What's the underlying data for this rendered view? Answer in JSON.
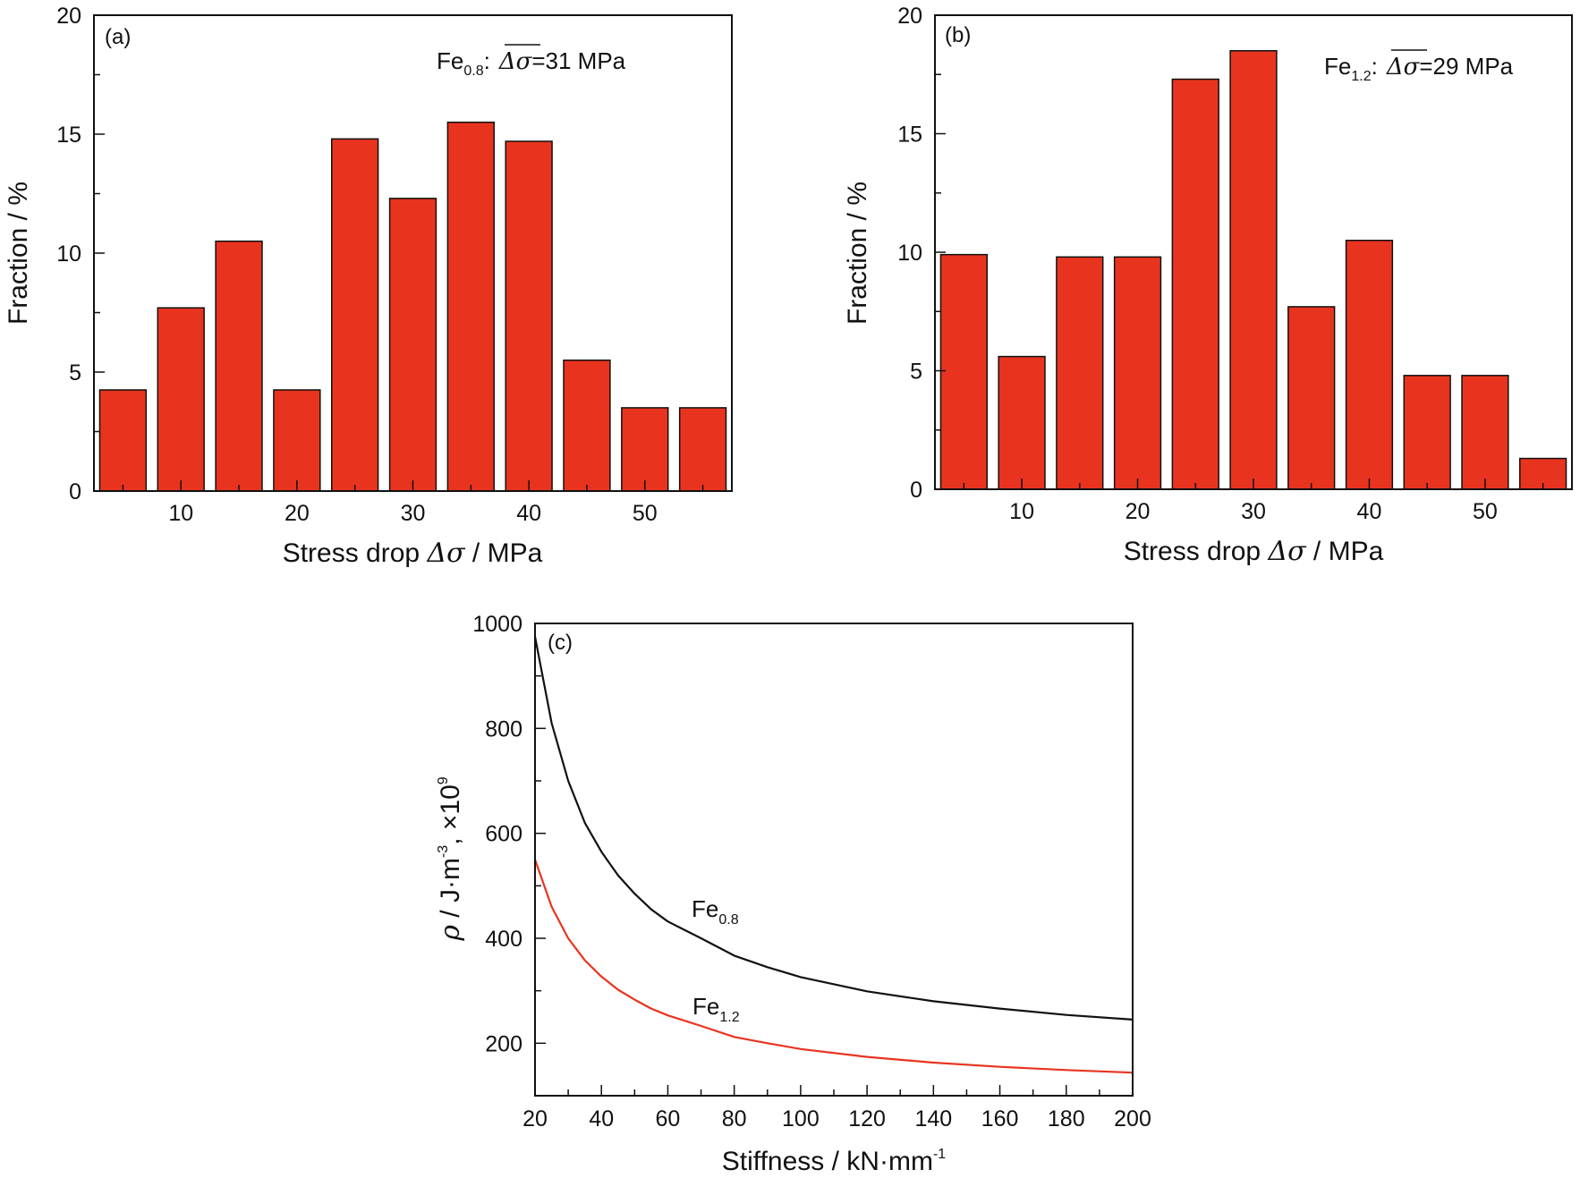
{
  "chart_data": [
    {
      "type": "bar",
      "panel": "(a)",
      "categories": [
        5,
        10,
        15,
        20,
        25,
        30,
        35,
        40,
        45,
        50,
        55
      ],
      "values": [
        4.25,
        7.7,
        10.5,
        4.25,
        14.8,
        12.3,
        15.5,
        14.7,
        5.5,
        3.5,
        3.5
      ],
      "xlabel_prefix": "Stress drop ",
      "xlabel_symbol": "Δσ",
      "xlabel_suffix": " / MPa",
      "ylabel": "Fraction / %",
      "xlim": [
        2.5,
        57.5
      ],
      "ylim": [
        0,
        20
      ],
      "xticks": [
        10,
        20,
        30,
        40,
        50
      ],
      "yticks": [
        0,
        5,
        10,
        15,
        20
      ],
      "bar_color": "#e8341f",
      "annotation": {
        "base": "Fe",
        "sub": "0.8",
        "colon": ":",
        "bar_symbol": "Δσ",
        "value": "=31 MPa"
      }
    },
    {
      "type": "bar",
      "panel": "(b)",
      "categories": [
        5,
        10,
        15,
        20,
        25,
        30,
        35,
        40,
        45,
        50,
        55
      ],
      "values": [
        9.9,
        5.6,
        9.8,
        9.8,
        17.3,
        18.5,
        7.7,
        10.5,
        4.8,
        4.8,
        1.3
      ],
      "xlabel_prefix": "Stress drop ",
      "xlabel_symbol": "Δσ",
      "xlabel_suffix": " / MPa",
      "ylabel": "Fraction / %",
      "xlim": [
        2.5,
        57.5
      ],
      "ylim": [
        0,
        20
      ],
      "xticks": [
        10,
        20,
        30,
        40,
        50
      ],
      "yticks": [
        0,
        5,
        10,
        15,
        20
      ],
      "bar_color": "#e8341f",
      "annotation": {
        "base": "Fe",
        "sub": "1.2",
        "colon": ":",
        "bar_symbol": "Δσ",
        "value": "=29 MPa"
      }
    },
    {
      "type": "line",
      "panel": "(c)",
      "xlabel": "Stiffness / kN·mm",
      "xlabel_sup": "-1",
      "ylabel_symbol": "ρ",
      "ylabel_mid": " / J·m",
      "ylabel_sup": "-3",
      "ylabel_tail": ", ×10",
      "ylabel_sup2": "9",
      "xlim": [
        20,
        200
      ],
      "ylim": [
        100,
        1000
      ],
      "xticks": [
        20,
        40,
        60,
        80,
        100,
        120,
        140,
        160,
        180,
        200
      ],
      "yticks": [
        200,
        400,
        600,
        800,
        1000
      ],
      "series": [
        {
          "name_base": "Fe",
          "name_sub": "0.8",
          "color": "#111111",
          "x": [
            20,
            25,
            30,
            35,
            40,
            45,
            50,
            55,
            60,
            70,
            80,
            90,
            100,
            120,
            140,
            160,
            180,
            200
          ],
          "y": [
            975,
            810,
            700,
            620,
            565,
            520,
            485,
            455,
            432,
            400,
            367,
            345,
            326,
            299,
            280,
            266,
            254,
            245
          ]
        },
        {
          "name_base": "Fe",
          "name_sub": "1.2",
          "color": "#e8341f",
          "x": [
            20,
            25,
            30,
            35,
            40,
            45,
            50,
            55,
            60,
            70,
            80,
            90,
            100,
            120,
            140,
            160,
            180,
            200
          ],
          "y": [
            550,
            460,
            400,
            358,
            327,
            302,
            283,
            266,
            253,
            233,
            212,
            200,
            189,
            174,
            163,
            155,
            149,
            144
          ]
        }
      ]
    }
  ]
}
